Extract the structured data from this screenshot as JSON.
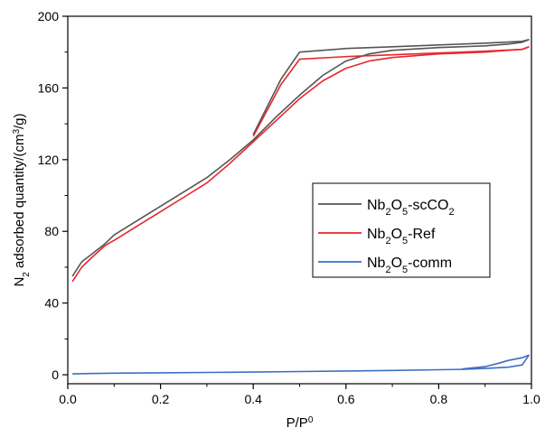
{
  "chart_data": {
    "type": "line",
    "xlabel": {
      "base": "P/P",
      "sup": "0"
    },
    "ylabel": {
      "prefix": "N",
      "sub": "2",
      "mid": " adsorbed quantity/(cm",
      "sup": "3",
      "suffix": "/g)"
    },
    "xlim": [
      0,
      1.0
    ],
    "ylim": [
      -5,
      200
    ],
    "xticks": [
      "0.0",
      "0.2",
      "0.4",
      "0.6",
      "0.8",
      "1.0"
    ],
    "yticks": [
      "0",
      "40",
      "80",
      "120",
      "160",
      "200"
    ],
    "grid": false,
    "legend_position": "center-right",
    "series": [
      {
        "name": "Nb2O5-scCO2",
        "legend": {
          "a": "Nb",
          "s1": "2",
          "b": "O",
          "s2": "5",
          "c": "-scCO",
          "s3": "2",
          "d": ""
        },
        "color": "#555555",
        "adsorption": {
          "x": [
            0.01,
            0.03,
            0.05,
            0.08,
            0.1,
            0.15,
            0.2,
            0.25,
            0.3,
            0.35,
            0.4,
            0.45,
            0.5,
            0.55,
            0.6,
            0.65,
            0.7,
            0.8,
            0.9,
            0.95,
            0.98,
            0.995
          ],
          "y": [
            55,
            63,
            67,
            73,
            78,
            86,
            94,
            102,
            110,
            120,
            131,
            144,
            156,
            167,
            175,
            179,
            181,
            182.5,
            183.5,
            184.5,
            185.5,
            187
          ]
        },
        "desorption": {
          "x": [
            0.995,
            0.98,
            0.9,
            0.8,
            0.7,
            0.6,
            0.5,
            0.46,
            0.4
          ],
          "y": [
            187,
            186,
            185,
            184,
            183,
            182,
            180,
            165,
            134
          ]
        }
      },
      {
        "name": "Nb2O5-Ref",
        "legend": {
          "a": "Nb",
          "s1": "2",
          "b": "O",
          "s2": "5",
          "c": "-Ref",
          "s3": "",
          "d": ""
        },
        "color": "#e8262b",
        "adsorption": {
          "x": [
            0.01,
            0.03,
            0.05,
            0.08,
            0.1,
            0.15,
            0.2,
            0.25,
            0.3,
            0.35,
            0.4,
            0.45,
            0.5,
            0.55,
            0.6,
            0.65,
            0.7,
            0.8,
            0.9,
            0.95,
            0.98,
            0.995
          ],
          "y": [
            52,
            60,
            65,
            72,
            75,
            83,
            91,
            99,
            107,
            118,
            130,
            142,
            154,
            164,
            171,
            175,
            177,
            179,
            180,
            181,
            181.5,
            183
          ]
        },
        "desorption": {
          "x": [
            0.995,
            0.98,
            0.9,
            0.8,
            0.7,
            0.6,
            0.5,
            0.46,
            0.4
          ],
          "y": [
            183,
            181.5,
            180.5,
            179.5,
            178.5,
            177.5,
            176,
            162,
            133
          ]
        }
      },
      {
        "name": "Nb2O5-comm",
        "legend": {
          "a": "Nb",
          "s1": "2",
          "b": "O",
          "s2": "5",
          "c": "-comm",
          "s3": "",
          "d": ""
        },
        "color": "#3b6fc4",
        "adsorption": {
          "x": [
            0.01,
            0.05,
            0.1,
            0.2,
            0.3,
            0.4,
            0.5,
            0.6,
            0.7,
            0.8,
            0.85,
            0.9,
            0.95,
            0.98,
            0.995
          ],
          "y": [
            0.5,
            0.7,
            0.9,
            1.1,
            1.3,
            1.5,
            1.8,
            2.1,
            2.4,
            2.8,
            3.0,
            3.5,
            4.2,
            5.5,
            11
          ]
        },
        "desorption": {
          "x": [
            0.995,
            0.98,
            0.95,
            0.93,
            0.9,
            0.85
          ],
          "y": [
            11,
            9.5,
            8.0,
            6.5,
            4.5,
            3.2
          ]
        }
      }
    ]
  }
}
